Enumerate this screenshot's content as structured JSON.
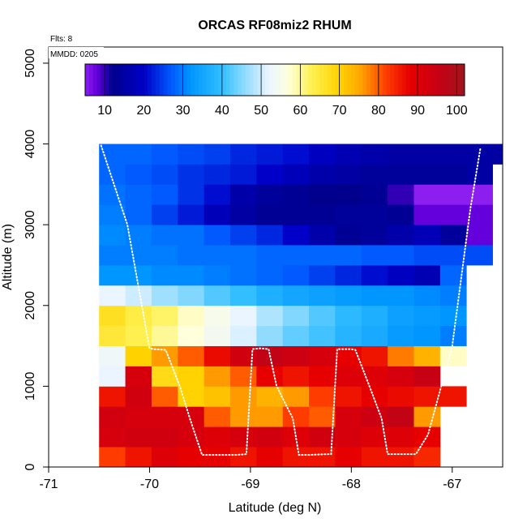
{
  "chart_data": {
    "type": "heatmap",
    "title": "ORCAS RF08miz2 RHUM",
    "annotations": [
      "Flts: 8",
      "MMDD: 0205"
    ],
    "xlabel": "Latitude (deg N)",
    "ylabel": "Altitude (m)",
    "xlim": [
      -71,
      -66.5
    ],
    "ylim": [
      0,
      5200
    ],
    "x_ticks": [
      -71,
      -70,
      -69,
      -68,
      -67
    ],
    "y_ticks": [
      0,
      1000,
      2000,
      3000,
      4000,
      5000
    ],
    "colorbar": {
      "range": [
        5,
        102
      ],
      "ticks": [
        10,
        20,
        30,
        40,
        50,
        60,
        70,
        80,
        90,
        100
      ],
      "placement": "top-inside"
    },
    "cell_width_deg": 0.26,
    "cell_height_m": 250,
    "columns_lat_start": [
      -70.5,
      -70.24,
      -69.98,
      -69.72,
      -69.46,
      -69.2,
      -68.94,
      -68.68,
      -68.42,
      -68.16,
      -67.9,
      -67.64,
      -67.38,
      -67.12,
      -66.86,
      -66.6
    ],
    "rows_alt_start": [
      0,
      250,
      500,
      750,
      1000,
      1250,
      1500,
      1750,
      2000,
      2250,
      2500,
      2750,
      3000,
      3250,
      3500,
      3750
    ],
    "values": [
      [
        82,
        86,
        90,
        88,
        88,
        86,
        88,
        86,
        86,
        88,
        86,
        86,
        84,
        null,
        null,
        null
      ],
      [
        92,
        93,
        93,
        92,
        90,
        92,
        93,
        90,
        93,
        92,
        90,
        90,
        88,
        null,
        null,
        null
      ],
      [
        93,
        92,
        92,
        92,
        80,
        76,
        76,
        82,
        80,
        92,
        94,
        96,
        76,
        null,
        null,
        null
      ],
      [
        86,
        93,
        80,
        70,
        72,
        76,
        74,
        76,
        82,
        86,
        88,
        87,
        86,
        86,
        null,
        null
      ],
      [
        52,
        92,
        68,
        70,
        76,
        80,
        88,
        86,
        88,
        90,
        90,
        92,
        95,
        null,
        null,
        null
      ],
      [
        53,
        70,
        76,
        80,
        87,
        93,
        96,
        94,
        92,
        88,
        86,
        78,
        74,
        58,
        null,
        null
      ],
      [
        65,
        63,
        60,
        57,
        54,
        51,
        46,
        43,
        41,
        38,
        36,
        33,
        32,
        30,
        null,
        null
      ],
      [
        67,
        64,
        62,
        58,
        55,
        52,
        48,
        45,
        42,
        39,
        37,
        34,
        33,
        32,
        null,
        null
      ],
      [
        52,
        50,
        47,
        45,
        42,
        40,
        37,
        35,
        34,
        33,
        32,
        32,
        31,
        30,
        null,
        null
      ],
      [
        32,
        32,
        31,
        31,
        30,
        29,
        28,
        27,
        25,
        23,
        21,
        19,
        17,
        28,
        null,
        null
      ],
      [
        30,
        30,
        30,
        29,
        29,
        29,
        28,
        28,
        28,
        28,
        27,
        27,
        26,
        26,
        26,
        null
      ],
      [
        31,
        30,
        29,
        29,
        27,
        25,
        23,
        20,
        16,
        13,
        14,
        16,
        18,
        14,
        8,
        null
      ],
      [
        30,
        28,
        25,
        22,
        18,
        15,
        13,
        13,
        13,
        14,
        14,
        13,
        8,
        8,
        8,
        null
      ],
      [
        29,
        28,
        27,
        24,
        21,
        16,
        14,
        13,
        12,
        12,
        13,
        10,
        5,
        4,
        4,
        null
      ],
      [
        28,
        27,
        26,
        24,
        23,
        22,
        20,
        18,
        16,
        15,
        14,
        14,
        14,
        14,
        15,
        null
      ],
      [
        28,
        28,
        27,
        26,
        25,
        23,
        22,
        21,
        19,
        17,
        16,
        15,
        15,
        15,
        15,
        15
      ]
    ],
    "flight_track": {
      "lat": [
        -70.48,
        -70.22,
        -70.0,
        -69.96,
        -69.84,
        -69.7,
        -69.6,
        -69.48,
        -69.42,
        -69.3,
        -69.14,
        -69.04,
        -68.98,
        -68.9,
        -68.82,
        -68.74,
        -68.58,
        -68.52,
        -68.42,
        -68.24,
        -68.2,
        -68.14,
        -68.0,
        -67.96,
        -67.82,
        -67.7,
        -67.64,
        -67.56,
        -67.48,
        -67.36,
        -67.24,
        -67.0,
        -66.82,
        -66.72
      ],
      "alt": [
        3980,
        3000,
        1470,
        1460,
        1450,
        1000,
        600,
        150,
        150,
        150,
        150,
        160,
        1460,
        1470,
        1460,
        1000,
        600,
        150,
        150,
        160,
        160,
        1460,
        1460,
        1450,
        1000,
        600,
        160,
        160,
        160,
        160,
        400,
        1500,
        3200,
        3950
      ]
    }
  }
}
